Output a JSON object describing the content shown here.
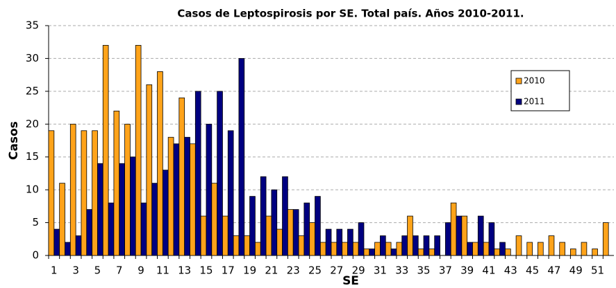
{
  "chart_data": {
    "type": "bar",
    "title": "Casos de Leptospirosis  por SE. Total país. Años 2010-2011.",
    "x_label": "SE",
    "y_label": "Casos",
    "categories": [
      1,
      null,
      3,
      null,
      5,
      null,
      7,
      null,
      9,
      null,
      11,
      null,
      13,
      null,
      15,
      null,
      17,
      null,
      19,
      null,
      21,
      null,
      23,
      null,
      25,
      null,
      27,
      null,
      29,
      null,
      31,
      null,
      33,
      null,
      35,
      null,
      37,
      null,
      39,
      null,
      41,
      null,
      43,
      null,
      45,
      null,
      47,
      null,
      49,
      null,
      51,
      null
    ],
    "series": [
      {
        "name": "2010",
        "color": "#ffa31a",
        "values": [
          19,
          11,
          20,
          19,
          19,
          32,
          22,
          20,
          32,
          26,
          28,
          18,
          24,
          17,
          6,
          11,
          6,
          3,
          3,
          2,
          6,
          4,
          7,
          3,
          5,
          2,
          2,
          2,
          2,
          1,
          2,
          2,
          2,
          6,
          1,
          1,
          0,
          8,
          6,
          2,
          2,
          1,
          1,
          3,
          2,
          2,
          3,
          2,
          1,
          2,
          1,
          5
        ]
      },
      {
        "name": "2011",
        "color": "#000080",
        "values": [
          4,
          2,
          3,
          7,
          14,
          8,
          14,
          15,
          8,
          11,
          13,
          17,
          18,
          25,
          20,
          25,
          19,
          30,
          9,
          12,
          10,
          12,
          7,
          8,
          9,
          4,
          4,
          4,
          5,
          1,
          3,
          1,
          3,
          3,
          3,
          3,
          5,
          6,
          2,
          6,
          5,
          2,
          0,
          0,
          0,
          0,
          0,
          0,
          0,
          0,
          0,
          0
        ]
      }
    ],
    "ylim": [
      0,
      35
    ],
    "yticks": [
      0,
      5,
      10,
      15,
      20,
      25,
      30,
      35
    ],
    "grid": true,
    "legend": "right"
  }
}
